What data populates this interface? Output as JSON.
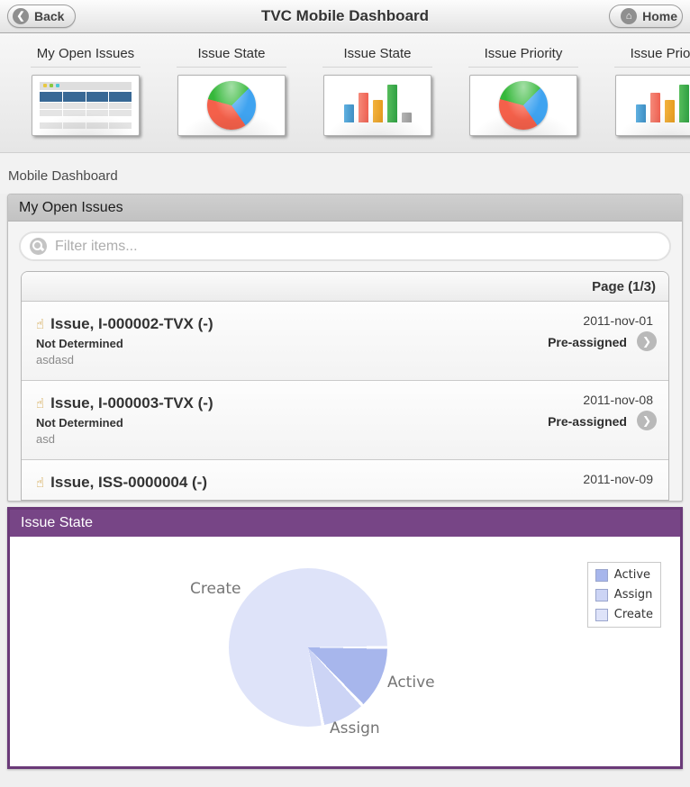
{
  "topbar": {
    "title": "TVC Mobile Dashboard",
    "back_label": "Back",
    "home_label": "Home"
  },
  "strip": {
    "items": [
      {
        "label": "My Open Issues",
        "thumb": "table-thumbnail"
      },
      {
        "label": "Issue State",
        "thumb": "pie-thumbnail"
      },
      {
        "label": "Issue State",
        "thumb": "bar-thumbnail"
      },
      {
        "label": "Issue Priority",
        "thumb": "pie-thumbnail"
      },
      {
        "label": "Issue Priority",
        "thumb": "bar-thumbnail"
      }
    ]
  },
  "breadcrumb": "Mobile Dashboard",
  "issues_panel": {
    "title": "My Open Issues",
    "filter_placeholder": "Filter items...",
    "page_indicator": "Page (1/3)",
    "rows": [
      {
        "title": "Issue, I-000002-TVX (-)",
        "status": "Not Determined",
        "description": "asdasd",
        "date": "2011-nov-01",
        "assignment": "Pre-assigned"
      },
      {
        "title": "Issue, I-000003-TVX (-)",
        "status": "Not Determined",
        "description": "asd",
        "date": "2011-nov-08",
        "assignment": "Pre-assigned"
      },
      {
        "title": "Issue, ISS-0000004 (-)",
        "status": "",
        "description": "",
        "date": "2011-nov-09",
        "assignment": ""
      }
    ]
  },
  "state_panel": {
    "title": "Issue State",
    "accent_color": "#774586",
    "border_color": "#6a3a78"
  },
  "chart_data": {
    "type": "pie",
    "title": "Issue State",
    "labels": [
      "Active",
      "Assign",
      "Create"
    ],
    "values": [
      13,
      9,
      78
    ],
    "unit": "percent",
    "colors": [
      "#a7b6ec",
      "#ccd4f5",
      "#dee3f9"
    ],
    "legend": [
      "Active",
      "Assign",
      "Create"
    ],
    "legend_position": "top-right",
    "start_angle_deg": 90,
    "direction": "clockwise",
    "slice_separator_color": "#ffffff"
  }
}
